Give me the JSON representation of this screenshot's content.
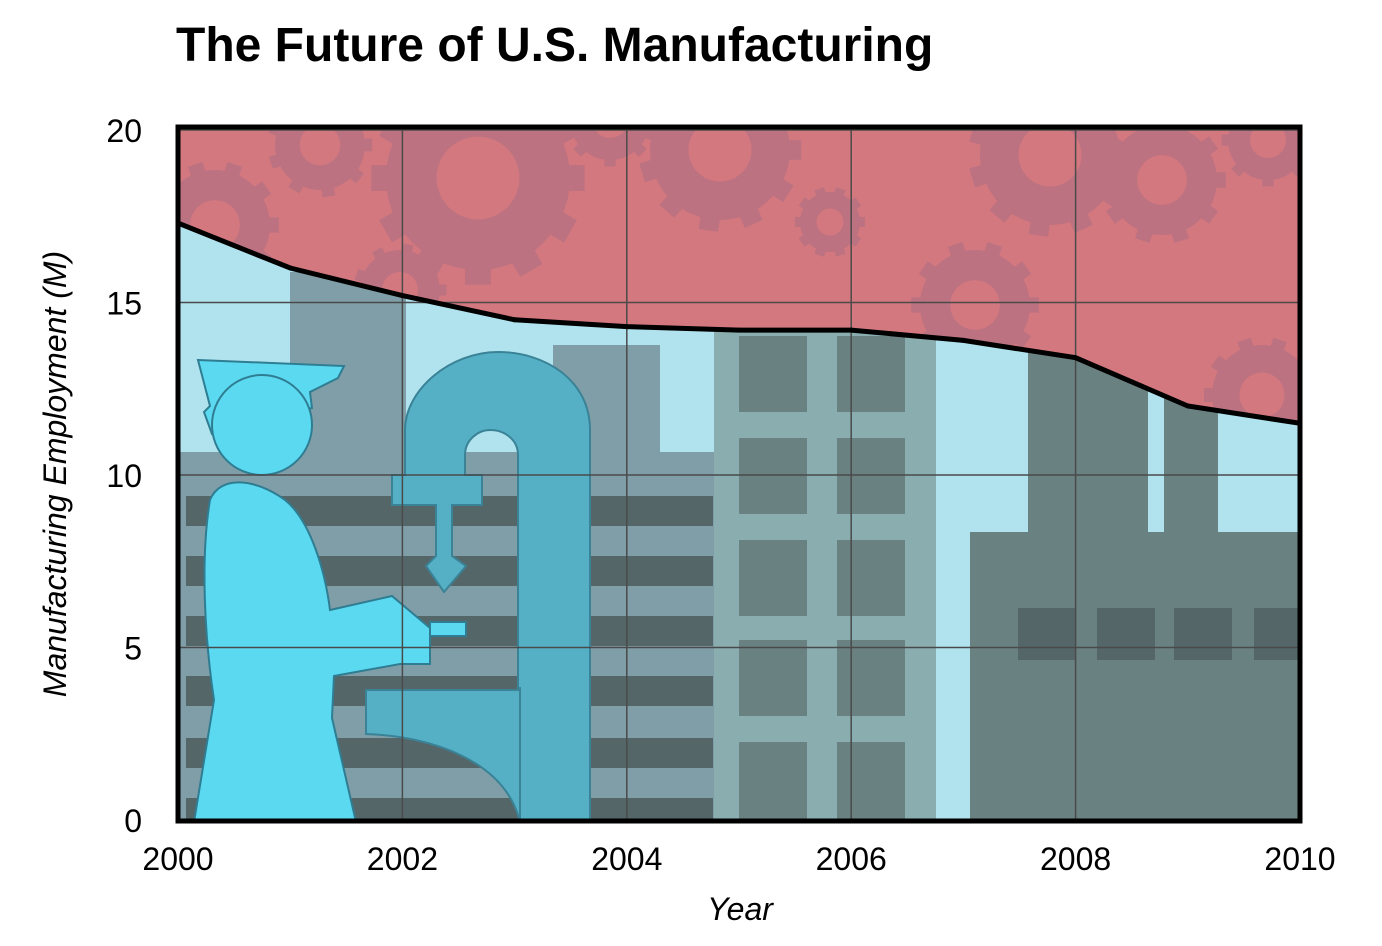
{
  "chart_data": {
    "type": "area",
    "title": "The Future of U.S. Manufacturing",
    "xlabel": "Year",
    "ylabel": "Manufacturing Employment (M)",
    "xlim": [
      2000,
      2010
    ],
    "ylim": [
      0,
      20
    ],
    "xticks": [
      "2000",
      "2002",
      "2004",
      "2006",
      "2008",
      "2010"
    ],
    "yticks": [
      "0",
      "5",
      "10",
      "15",
      "20"
    ],
    "grid": true,
    "legend": "none",
    "x": [
      2000,
      2001,
      2002,
      2003,
      2004,
      2005,
      2006,
      2007,
      2008,
      2009,
      2010
    ],
    "series": [
      {
        "values": [
          17.3,
          16.0,
          15.2,
          14.5,
          14.3,
          14.2,
          14.2,
          13.9,
          13.4,
          12.0,
          11.5
        ]
      }
    ],
    "colors": {
      "sky": "#b0e3ee",
      "fill_above_line": "#d4787f",
      "gears": "#bc7280",
      "figure": "#5bd9f0",
      "machine": "#55b0c6",
      "building_dark": "#6a8182",
      "building_mid": "#7f9ea8",
      "stripes": "#556669",
      "tower": "#8aaeaf",
      "windows": "#6a8182",
      "line": "#000000",
      "grid": "#4a4a4a"
    }
  }
}
